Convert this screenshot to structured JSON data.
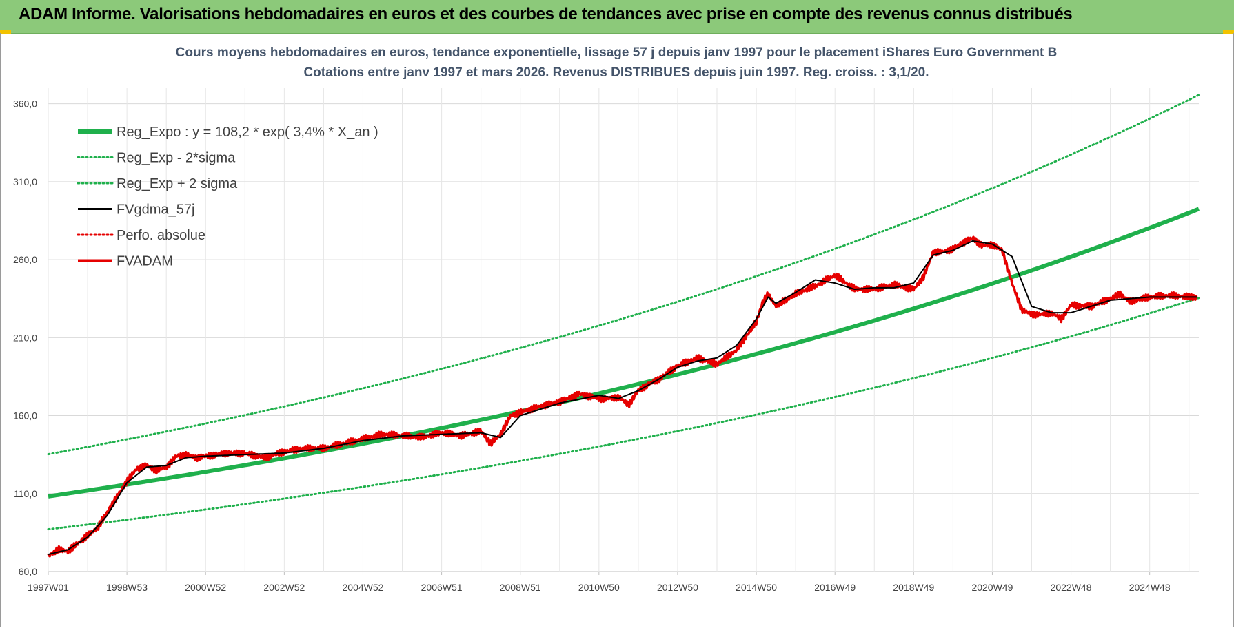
{
  "banner": {
    "title": "ADAM Informe. Valorisations hebdomadaires en euros et des courbes de tendances avec prise en compte des revenus connus distribués"
  },
  "colors": {
    "banner_bg": "#8cc97a",
    "trend_green": "#1fb04c",
    "price_red": "#e60000",
    "smooth_black": "#000000",
    "grid": "#d9d9d9"
  },
  "chart_data": {
    "type": "line",
    "title": [
      "Cours moyens hebdomadaires en euros, tendance exponentielle, lissage 57 j depuis janv 1997 pour le placement iShares Euro Government B",
      "Cotations entre janv 1997 et mars 2026. Revenus DISTRIBUES depuis juin 1997. Reg. croiss. : 3,1/20."
    ],
    "x_range": [
      1997.0,
      2026.25
    ],
    "ylim": [
      60,
      370
    ],
    "y_ticks": [
      "60,0",
      "110,0",
      "160,0",
      "210,0",
      "260,0",
      "310,0",
      "360,0"
    ],
    "y_tick_values": [
      60,
      110,
      160,
      210,
      260,
      310,
      360
    ],
    "x_ticks": [
      {
        "label": "1997W01",
        "value": 1997.0
      },
      {
        "label": "1998W53",
        "value": 1999.0
      },
      {
        "label": "2000W52",
        "value": 2001.0
      },
      {
        "label": "2002W52",
        "value": 2003.0
      },
      {
        "label": "2004W52",
        "value": 2005.0
      },
      {
        "label": "2006W51",
        "value": 2007.0
      },
      {
        "label": "2008W51",
        "value": 2009.0
      },
      {
        "label": "2010W50",
        "value": 2011.0
      },
      {
        "label": "2012W50",
        "value": 2013.0
      },
      {
        "label": "2014W50",
        "value": 2015.0
      },
      {
        "label": "2016W49",
        "value": 2017.0
      },
      {
        "label": "2018W49",
        "value": 2019.0
      },
      {
        "label": "2020W49",
        "value": 2021.0
      },
      {
        "label": "2022W48",
        "value": 2023.0
      },
      {
        "label": "2024W48",
        "value": 2025.0
      }
    ],
    "legend": [
      {
        "label": "Reg_Expo : y = 108,2 * exp( 3,4% *  X_an )",
        "color": "#1fb04c",
        "style": "solid-thick"
      },
      {
        "label": "Reg_Exp - 2*sigma",
        "color": "#1fb04c",
        "style": "dotted"
      },
      {
        "label": "Reg_Exp + 2 sigma",
        "color": "#1fb04c",
        "style": "dotted"
      },
      {
        "label": "FVgdma_57j",
        "color": "#000000",
        "style": "solid"
      },
      {
        "label": "Perfo. absolue",
        "color": "#e60000",
        "style": "dotted"
      },
      {
        "label": "FVADAM",
        "color": "#e60000",
        "style": "solid"
      }
    ],
    "regression": {
      "a": 108.2,
      "growth_rate": 0.034,
      "lower_factor": 0.805,
      "upper_factor": 1.25
    },
    "series": [
      {
        "name": "FVADAM",
        "x": [
          1997.0,
          1997.25,
          1997.5,
          1997.75,
          1998.0,
          1998.25,
          1998.5,
          1998.75,
          1999.0,
          1999.25,
          1999.5,
          1999.75,
          2000.0,
          2000.25,
          2000.5,
          2000.75,
          2001.0,
          2001.5,
          2002.0,
          2002.5,
          2003.0,
          2003.5,
          2004.0,
          2004.5,
          2005.0,
          2005.5,
          2006.0,
          2006.5,
          2007.0,
          2007.5,
          2008.0,
          2008.25,
          2008.5,
          2008.75,
          2009.0,
          2009.5,
          2010.0,
          2010.5,
          2011.0,
          2011.25,
          2011.5,
          2011.75,
          2012.0,
          2012.25,
          2012.5,
          2013.0,
          2013.5,
          2014.0,
          2014.5,
          2015.0,
          2015.15,
          2015.3,
          2015.5,
          2016.0,
          2016.5,
          2017.0,
          2017.5,
          2018.0,
          2018.5,
          2019.0,
          2019.25,
          2019.5,
          2019.75,
          2020.0,
          2020.25,
          2020.5,
          2020.75,
          2021.0,
          2021.25,
          2021.5,
          2021.75,
          2022.0,
          2022.25,
          2022.5,
          2022.75,
          2023.0,
          2023.5,
          2024.0,
          2024.25,
          2024.5,
          2025.0,
          2025.5,
          2026.0,
          2026.2
        ],
        "values": [
          70,
          74,
          73,
          78,
          83,
          88,
          98,
          108,
          118,
          126,
          128,
          125,
          127,
          134,
          135,
          133,
          134,
          136,
          136,
          133,
          137,
          139,
          139,
          142,
          145,
          148,
          147,
          146,
          149,
          147,
          150,
          142,
          148,
          160,
          162,
          166,
          169,
          174,
          171,
          171,
          172,
          167,
          176,
          180,
          183,
          192,
          197,
          193,
          202,
          220,
          232,
          238,
          230,
          238,
          243,
          250,
          241,
          241,
          244,
          241,
          249,
          265,
          265,
          267,
          271,
          274,
          269,
          270,
          266,
          245,
          228,
          225,
          225,
          226,
          222,
          231,
          230,
          235,
          238,
          233,
          236,
          237,
          236,
          236
        ]
      },
      {
        "name": "FVgdma_57j",
        "x": [
          1997.0,
          1997.5,
          1998.0,
          1998.5,
          1999.0,
          1999.5,
          2000.0,
          2000.5,
          2001.0,
          2002.0,
          2003.0,
          2004.0,
          2005.0,
          2006.0,
          2007.0,
          2008.0,
          2008.5,
          2009.0,
          2010.0,
          2011.0,
          2011.5,
          2012.0,
          2012.5,
          2013.0,
          2013.5,
          2014.0,
          2014.5,
          2015.0,
          2015.3,
          2015.5,
          2016.0,
          2016.5,
          2017.0,
          2017.5,
          2018.0,
          2018.5,
          2019.0,
          2019.5,
          2020.0,
          2020.5,
          2021.0,
          2021.5,
          2022.0,
          2022.5,
          2023.0,
          2023.5,
          2024.0,
          2025.0,
          2026.0,
          2026.2
        ],
        "values": [
          71,
          74,
          82,
          96,
          117,
          127,
          128,
          133,
          134,
          135,
          136,
          139,
          144,
          147,
          148,
          149,
          146,
          160,
          168,
          173,
          171,
          176,
          183,
          191,
          195,
          197,
          205,
          222,
          236,
          232,
          239,
          247,
          245,
          241,
          242,
          242,
          245,
          263,
          266,
          272,
          270,
          262,
          230,
          226,
          226,
          230,
          234,
          236,
          236,
          236
        ]
      }
    ]
  }
}
